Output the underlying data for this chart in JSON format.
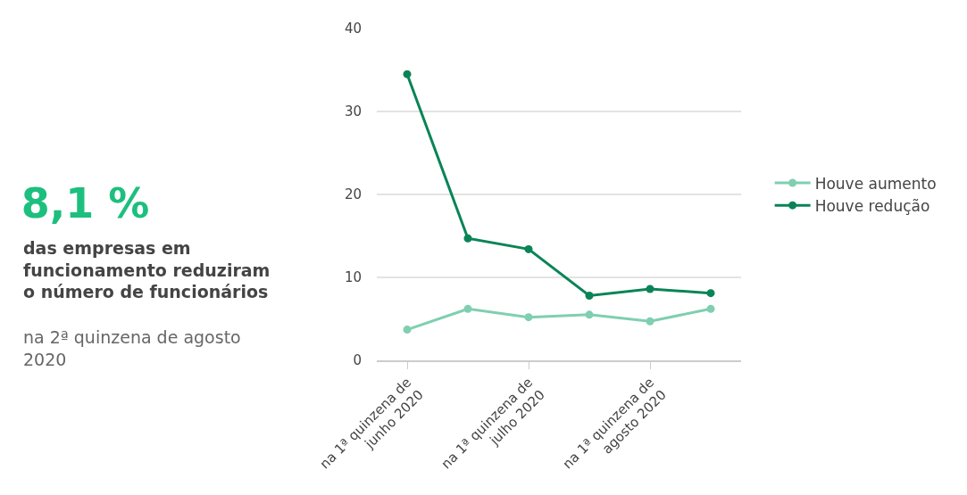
{
  "chart_data": {
    "type": "line",
    "title": "8,1 %",
    "subtitle": "das empresas em funcionamento reduziram o número de funcionários",
    "annotations": [
      "na 2ª quinzena de agosto 2020"
    ],
    "categories": [
      "na 1ª quinzena de junho 2020",
      null,
      "na 1ª quinzena de julho 2020",
      null,
      "na 1ª quinzena de agosto 2020",
      null
    ],
    "series": [
      {
        "name": "Houve aumento",
        "color": "#7fcfb0",
        "values": [
          3.7,
          6.2,
          5.2,
          5.5,
          4.7,
          6.2
        ]
      },
      {
        "name": "Houve redução",
        "color": "#0a8457",
        "values": [
          34.5,
          14.7,
          13.4,
          7.8,
          8.6,
          8.1
        ]
      }
    ],
    "ylim": [
      0,
      40
    ],
    "yticks": [
      0,
      10,
      20,
      30,
      40
    ],
    "grid": "y",
    "legend": "right",
    "marker": "circle",
    "line_style": "solid"
  }
}
